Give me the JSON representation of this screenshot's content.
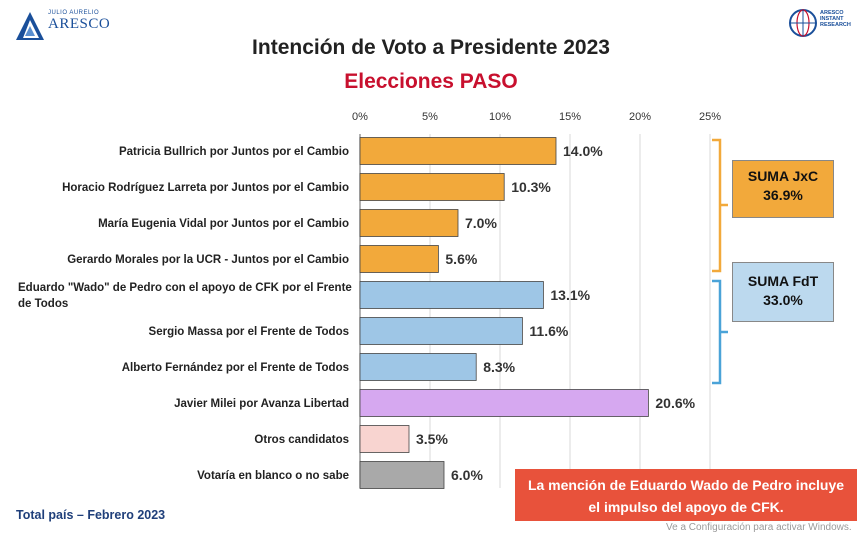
{
  "logo_left": {
    "small": "JULIO AURELIO",
    "big": "ARESCO"
  },
  "logo_right": {
    "line1": "ARESCO",
    "line2": "INSTANT",
    "line3": "RESEARCH"
  },
  "footer": "Total país – Febrero 2023",
  "note": {
    "line1": "La mención de Eduardo Wado de Pedro incluye",
    "line2": "el impulso del apoyo de CFK."
  },
  "watermark": "Ve a Configuración para activar Windows.",
  "boxes": {
    "jxc": {
      "label": "SUMA JxC",
      "value": "36.9%"
    },
    "fdt": {
      "label": "SUMA FdT",
      "value": "33.0%"
    }
  },
  "chart_data": {
    "type": "bar",
    "orientation": "horizontal",
    "title": "Intención de Voto a Presidente 2023",
    "subtitle": "Elecciones PASO",
    "xlim": [
      0,
      25
    ],
    "ticks": [
      "0%",
      "5%",
      "10%",
      "15%",
      "20%",
      "25%"
    ],
    "tick_values": [
      0,
      5,
      10,
      15,
      20,
      25
    ],
    "grid": true,
    "categories": [
      [
        "Patricia Bullrich por Juntos por el Cambio"
      ],
      [
        "Horacio Rodríguez Larreta por Juntos por el Cambio"
      ],
      [
        "María Eugenia Vidal por Juntos por el Cambio"
      ],
      [
        "Gerardo Morales por la UCR - Juntos por el Cambio"
      ],
      [
        "Eduardo \"Wado\" de Pedro con el apoyo de CFK por el Frente",
        "de Todos"
      ],
      [
        "Sergio Massa por el Frente de Todos"
      ],
      [
        "Alberto Fernández por el Frente de Todos"
      ],
      [
        "Javier Milei por Avanza Libertad"
      ],
      [
        "Otros candidatos"
      ],
      [
        "Votaría en blanco o no sabe"
      ]
    ],
    "values": [
      14.0,
      10.3,
      7.0,
      5.6,
      13.1,
      11.6,
      8.3,
      20.6,
      3.5,
      6.0
    ],
    "value_labels": [
      "14.0%",
      "10.3%",
      "7.0%",
      "5.6%",
      "13.1%",
      "11.6%",
      "8.3%",
      "20.6%",
      "3.5%",
      "6.0%"
    ],
    "colors": [
      "#f2a93b",
      "#f2a93b",
      "#f2a93b",
      "#f2a93b",
      "#9ec6e6",
      "#9ec6e6",
      "#9ec6e6",
      "#d6a8f0",
      "#f8d4d0",
      "#a9a9a9"
    ],
    "bracket_colors": {
      "jxc": "#f2a93b",
      "fdt": "#4aa3d8"
    }
  }
}
